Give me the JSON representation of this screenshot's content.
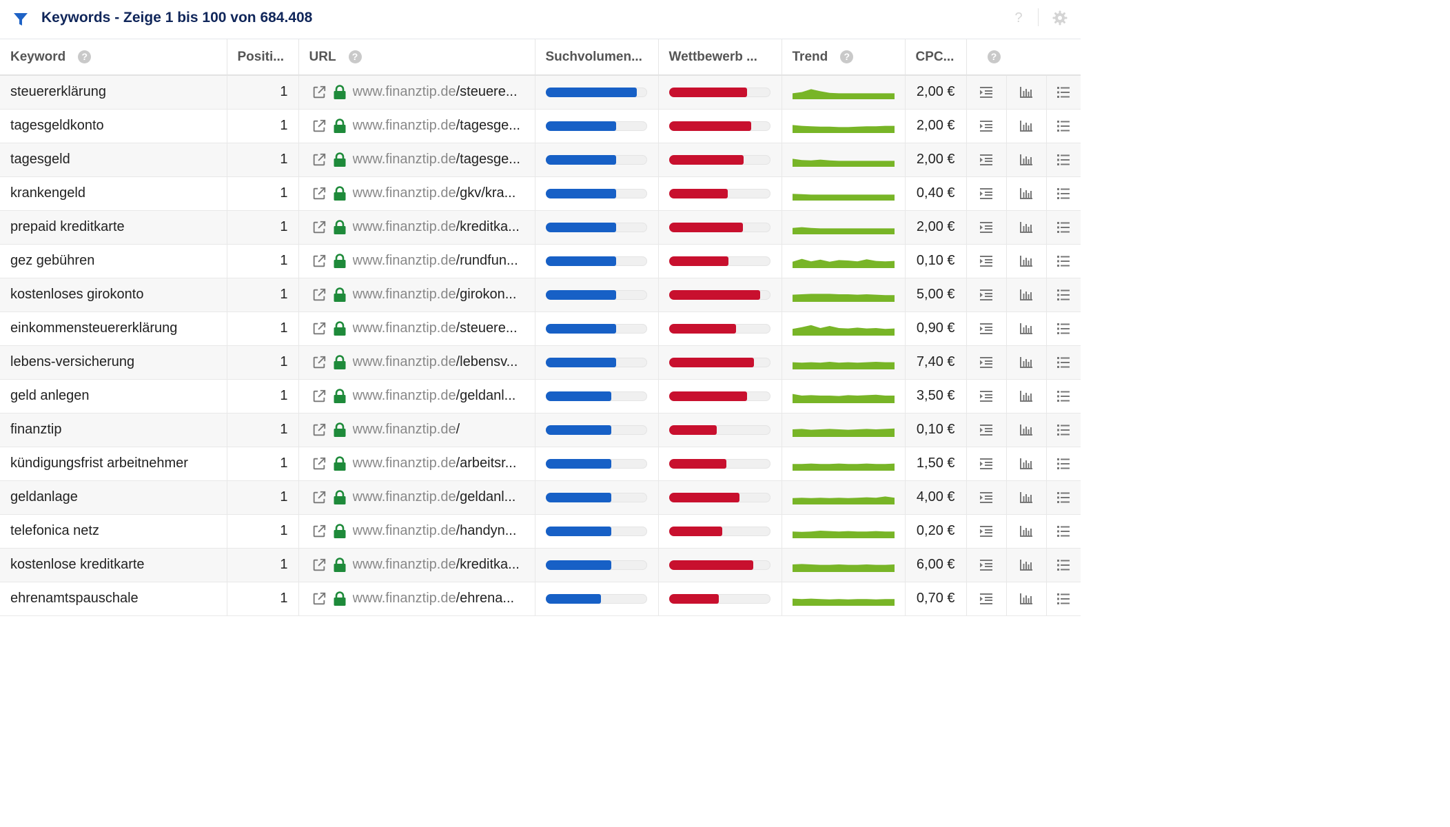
{
  "header": {
    "title": "Keywords - Zeige 1 bis 100 von 684.408"
  },
  "columns": {
    "keyword": "Keyword",
    "position": "Positi...",
    "url": "URL",
    "volume": "Suchvolumen...",
    "competition": "Wettbewerb ...",
    "trend": "Trend",
    "cpc": "CPC..."
  },
  "colors": {
    "volume_bar": "#1760c6",
    "competition_bar": "#c8102e",
    "trend": "#78b527",
    "title": "#10265a",
    "lock": "#1e8a3a"
  },
  "rows": [
    {
      "keyword": "steuererklärung",
      "position": "1",
      "domain": "www.finanztip.de",
      "path": "/steuere...",
      "cpc": "2,00 €",
      "volume": 0.9,
      "competition": 0.77,
      "trend": [
        0.3,
        0.45,
        0.8,
        0.55,
        0.35,
        0.3,
        0.3,
        0.3,
        0.3,
        0.3,
        0.3,
        0.3
      ]
    },
    {
      "keyword": "tagesgeldkonto",
      "position": "1",
      "domain": "www.finanztip.de",
      "path": "/tagesge...",
      "cpc": "2,00 €",
      "volume": 0.7,
      "competition": 0.81,
      "trend": [
        0.55,
        0.45,
        0.4,
        0.35,
        0.35,
        0.3,
        0.3,
        0.35,
        0.4,
        0.4,
        0.45,
        0.45
      ]
    },
    {
      "keyword": "tagesgeld",
      "position": "1",
      "domain": "www.finanztip.de",
      "path": "/tagesge...",
      "cpc": "2,00 €",
      "volume": 0.7,
      "competition": 0.74,
      "trend": [
        0.55,
        0.4,
        0.35,
        0.45,
        0.35,
        0.3,
        0.3,
        0.3,
        0.3,
        0.3,
        0.3,
        0.3
      ]
    },
    {
      "keyword": "krankengeld",
      "position": "1",
      "domain": "www.finanztip.de",
      "path": "/gkv/kra...",
      "cpc": "0,40 €",
      "volume": 0.7,
      "competition": 0.58,
      "trend": [
        0.4,
        0.35,
        0.3,
        0.3,
        0.3,
        0.3,
        0.3,
        0.3,
        0.3,
        0.3,
        0.3,
        0.3
      ]
    },
    {
      "keyword": "prepaid kreditkarte",
      "position": "1",
      "domain": "www.finanztip.de",
      "path": "/kreditka...",
      "cpc": "2,00 €",
      "volume": 0.7,
      "competition": 0.73,
      "trend": [
        0.35,
        0.45,
        0.35,
        0.3,
        0.3,
        0.3,
        0.3,
        0.3,
        0.3,
        0.3,
        0.3,
        0.3
      ]
    },
    {
      "keyword": "gez gebühren",
      "position": "1",
      "domain": "www.finanztip.de",
      "path": "/rundfun...",
      "cpc": "0,10 €",
      "volume": 0.7,
      "competition": 0.59,
      "trend": [
        0.35,
        0.7,
        0.4,
        0.6,
        0.35,
        0.55,
        0.5,
        0.4,
        0.65,
        0.45,
        0.4,
        0.45
      ]
    },
    {
      "keyword": "kostenloses girokonto",
      "position": "1",
      "domain": "www.finanztip.de",
      "path": "/girokon...",
      "cpc": "5,00 €",
      "volume": 0.7,
      "competition": 0.9,
      "trend": [
        0.45,
        0.5,
        0.55,
        0.55,
        0.55,
        0.5,
        0.5,
        0.45,
        0.5,
        0.45,
        0.4,
        0.4
      ]
    },
    {
      "keyword": "einkommensteuererklärung",
      "position": "1",
      "domain": "www.finanztip.de",
      "path": "/steuere...",
      "cpc": "0,90 €",
      "volume": 0.7,
      "competition": 0.66,
      "trend": [
        0.4,
        0.6,
        0.85,
        0.5,
        0.75,
        0.5,
        0.45,
        0.55,
        0.45,
        0.5,
        0.4,
        0.45
      ]
    },
    {
      "keyword": "lebens-versicherung",
      "position": "1",
      "domain": "www.finanztip.de",
      "path": "/lebensv...",
      "cpc": "7,40 €",
      "volume": 0.7,
      "competition": 0.84,
      "trend": [
        0.45,
        0.4,
        0.45,
        0.4,
        0.5,
        0.4,
        0.45,
        0.4,
        0.45,
        0.5,
        0.45,
        0.45
      ]
    },
    {
      "keyword": "geld anlegen",
      "position": "1",
      "domain": "www.finanztip.de",
      "path": "/geldanl...",
      "cpc": "3,50 €",
      "volume": 0.65,
      "competition": 0.77,
      "trend": [
        0.7,
        0.5,
        0.55,
        0.5,
        0.5,
        0.45,
        0.55,
        0.5,
        0.55,
        0.6,
        0.5,
        0.5
      ]
    },
    {
      "keyword": "finanztip",
      "position": "1",
      "domain": "www.finanztip.de",
      "path": "/",
      "cpc": "0,10 €",
      "volume": 0.65,
      "competition": 0.47,
      "trend": [
        0.5,
        0.55,
        0.45,
        0.5,
        0.55,
        0.5,
        0.45,
        0.5,
        0.55,
        0.5,
        0.55,
        0.6
      ]
    },
    {
      "keyword": "kündigungsfrist arbeitnehmer",
      "position": "1",
      "domain": "www.finanztip.de",
      "path": "/arbeitsr...",
      "cpc": "1,50 €",
      "volume": 0.65,
      "competition": 0.57,
      "trend": [
        0.4,
        0.4,
        0.45,
        0.4,
        0.4,
        0.45,
        0.4,
        0.4,
        0.45,
        0.4,
        0.4,
        0.45
      ]
    },
    {
      "keyword": "geldanlage",
      "position": "1",
      "domain": "www.finanztip.de",
      "path": "/geldanl...",
      "cpc": "4,00 €",
      "volume": 0.65,
      "competition": 0.7,
      "trend": [
        0.35,
        0.4,
        0.35,
        0.4,
        0.35,
        0.4,
        0.35,
        0.4,
        0.45,
        0.4,
        0.55,
        0.4
      ]
    },
    {
      "keyword": "telefonica netz",
      "position": "1",
      "domain": "www.finanztip.de",
      "path": "/handyn...",
      "cpc": "0,20 €",
      "volume": 0.65,
      "competition": 0.53,
      "trend": [
        0.4,
        0.35,
        0.4,
        0.5,
        0.45,
        0.4,
        0.45,
        0.4,
        0.4,
        0.45,
        0.4,
        0.4
      ]
    },
    {
      "keyword": "kostenlose kreditkarte",
      "position": "1",
      "domain": "www.finanztip.de",
      "path": "/kreditka...",
      "cpc": "6,00 €",
      "volume": 0.65,
      "competition": 0.83,
      "trend": [
        0.5,
        0.55,
        0.5,
        0.45,
        0.45,
        0.5,
        0.45,
        0.45,
        0.5,
        0.45,
        0.45,
        0.5
      ]
    },
    {
      "keyword": "ehrenamtspauschale",
      "position": "1",
      "domain": "www.finanztip.de",
      "path": "/ehrena...",
      "cpc": "0,70 €",
      "volume": 0.55,
      "competition": 0.49,
      "trend": [
        0.45,
        0.4,
        0.45,
        0.4,
        0.35,
        0.4,
        0.35,
        0.4,
        0.4,
        0.35,
        0.4,
        0.4
      ]
    }
  ]
}
